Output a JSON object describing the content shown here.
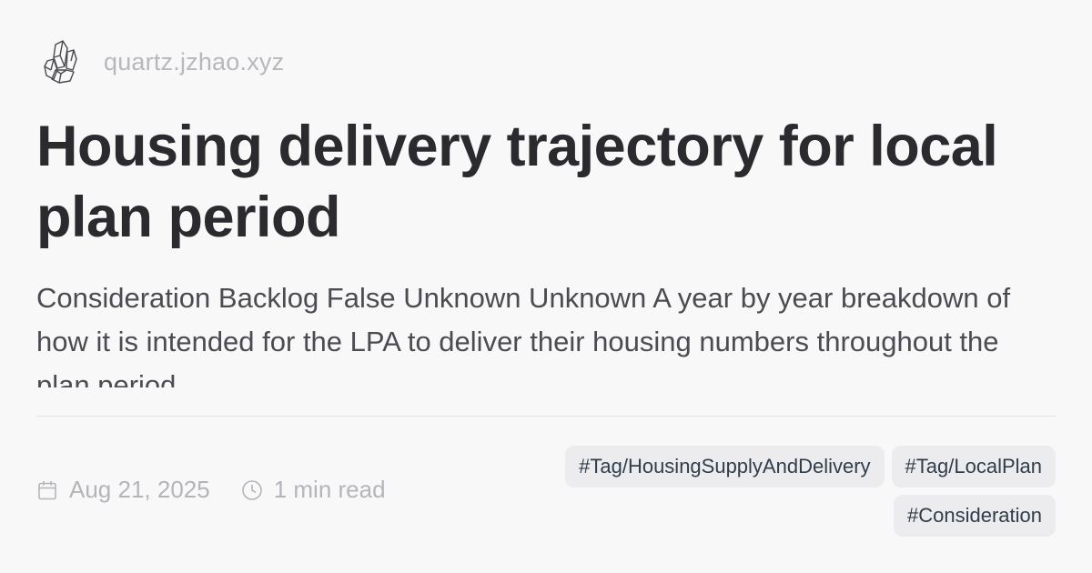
{
  "site": {
    "name": "quartz.jzhao.xyz",
    "logo_icon": "crystal-icon"
  },
  "article": {
    "title": "Housing delivery trajectory for local plan period",
    "description": "Consideration Backlog False Unknown Unknown A year by year breakdown of how it is intended for the LPA to deliver their housing numbers throughout the plan period"
  },
  "meta": {
    "date": "Aug 21, 2025",
    "date_icon": "calendar-icon",
    "read_time": "1 min read",
    "read_time_icon": "clock-icon"
  },
  "tags": [
    "#Tag/HousingSupplyAndDelivery",
    "#Tag/LocalPlan",
    "#Consideration"
  ],
  "colors": {
    "background": "#f8f8f9",
    "title": "#2b2b2f",
    "muted": "#b4b4ba",
    "tag_background": "#ececef",
    "tag_text": "#2f3e4a"
  }
}
